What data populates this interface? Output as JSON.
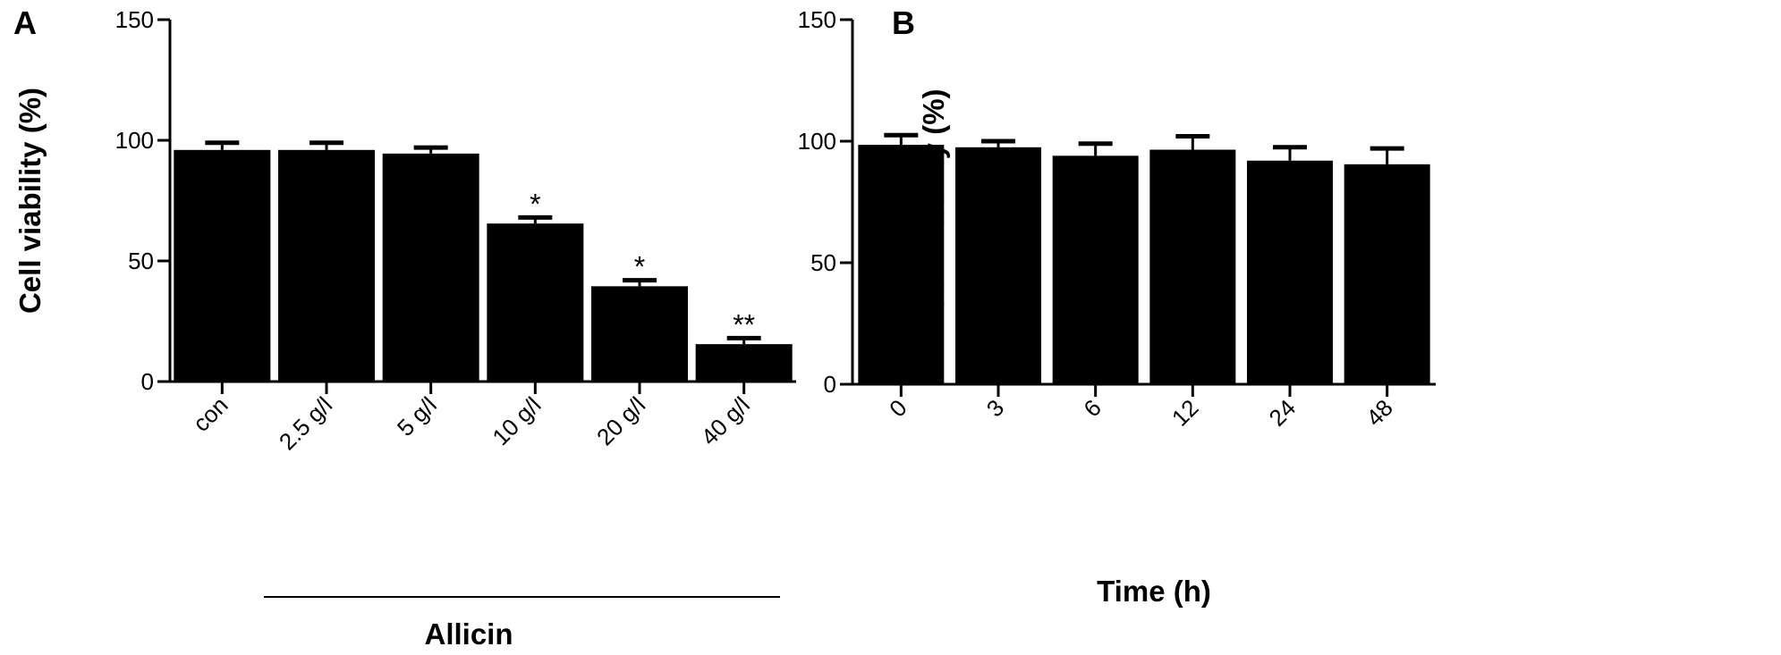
{
  "chart_data": [
    {
      "panel_label": "A",
      "type": "bar",
      "categories": [
        "con",
        "2.5 g/l",
        "5 g/l",
        "10 g/l",
        "20 g/l",
        "40 g/l"
      ],
      "values": [
        96,
        96,
        94.5,
        65.5,
        39.5,
        15.5
      ],
      "errors": [
        3,
        3,
        2.5,
        2.5,
        2.5,
        2.5
      ],
      "annotations": [
        "",
        "",
        "",
        "*",
        "*",
        "**"
      ],
      "ylabel": "Cell viability (%)",
      "yticks": [
        "0",
        "50",
        "100",
        "150"
      ],
      "ylim": [
        0,
        150
      ],
      "group_label": "Allicin",
      "grid": false,
      "bar_color": "#000000"
    },
    {
      "panel_label": "B",
      "type": "bar",
      "categories": [
        "0",
        "3",
        "6",
        "12",
        "24",
        "48"
      ],
      "values": [
        98.5,
        97.5,
        94,
        96.5,
        92,
        90.5
      ],
      "errors": [
        4,
        2.5,
        5,
        5.5,
        5.5,
        6.5
      ],
      "annotations": [
        "",
        "",
        "",
        "",
        "",
        ""
      ],
      "ylabel": "Cell viability (%)",
      "xlabel": "Time (h)",
      "yticks": [
        "0",
        "50",
        "100",
        "150"
      ],
      "ylim": [
        0,
        150
      ],
      "grid": false,
      "bar_color": "#000000"
    }
  ]
}
